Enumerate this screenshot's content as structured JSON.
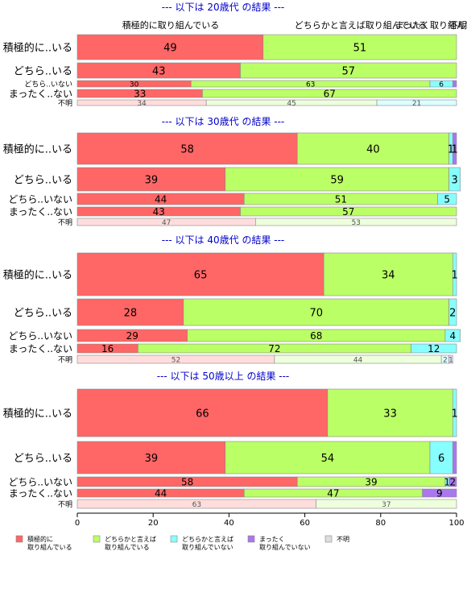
{
  "chart_data": {
    "type": "bar",
    "stacked": true,
    "orientation": "horizontal",
    "percent_scale": true,
    "xlim": [
      0,
      100
    ],
    "x_ticks": [
      "0",
      "20",
      "40",
      "60",
      "80",
      "100"
    ],
    "top_headers": [
      "積極的に取り組んでいる",
      "どちらかと言えば取り組んでいる",
      "まったく取り組んでいない",
      "不明"
    ],
    "legend": {
      "placement": "bottom",
      "items": [
        {
          "label": "積極的に\n取り組んでいる",
          "color": "#ff6666"
        },
        {
          "label": "どちらかと言えば\n取り組んでいる",
          "color": "#bbff66"
        },
        {
          "label": "どちらかと言えば\n取り組んでいない",
          "color": "#88ffff"
        },
        {
          "label": "まったく\n取り組んでいない",
          "color": "#aa77ee"
        },
        {
          "label": "不明",
          "color": "#dddddd"
        }
      ]
    },
    "panels": [
      {
        "title": "--- 以下は 20歳代 の結果 ---",
        "rows": [
          {
            "label": "積極的に..いる",
            "values": [
              49,
              51,
              0,
              0,
              0
            ],
            "labels": [
              "49",
              "51",
              "",
              "",
              ""
            ],
            "size": "tall",
            "faded": false
          },
          {
            "label": "どちら..いる",
            "values": [
              43,
              57,
              0,
              0,
              0
            ],
            "labels": [
              "43",
              "57",
              "",
              "",
              ""
            ],
            "size": "tall",
            "faded": false
          },
          {
            "label": "どちら..いない",
            "values": [
              30,
              63,
              6,
              1,
              0
            ],
            "labels": [
              "30",
              "63",
              "6",
              "",
              ""
            ],
            "size": "thin",
            "faded": false
          },
          {
            "label": "まったく..ない",
            "values": [
              33,
              67,
              0,
              0,
              0
            ],
            "labels": [
              "33",
              "67",
              "",
              "",
              ""
            ],
            "size": "small",
            "faded": false
          },
          {
            "label": "不明",
            "values": [
              34,
              45,
              21,
              0,
              0
            ],
            "labels": [
              "34",
              "45",
              "21",
              "",
              ""
            ],
            "size": "thin",
            "faded": true
          }
        ]
      },
      {
        "title": "--- 以下は 30歳代 の結果 ---",
        "rows": [
          {
            "label": "積極的に..いる",
            "values": [
              58,
              40,
              1,
              1,
              0
            ],
            "labels": [
              "58",
              "40",
              "1",
              "1",
              ""
            ],
            "size": "tall",
            "faded": false
          },
          {
            "label": "どちら..いる",
            "values": [
              39,
              59,
              3,
              0,
              0
            ],
            "labels": [
              "39",
              "59",
              "3",
              "",
              ""
            ],
            "size": "tall",
            "faded": false
          },
          {
            "label": "どちら..いない",
            "values": [
              44,
              51,
              5,
              0,
              0
            ],
            "labels": [
              "44",
              "51",
              "5",
              "",
              ""
            ],
            "size": "small",
            "faded": false
          },
          {
            "label": "まったく..ない",
            "values": [
              43,
              57,
              0,
              0,
              0
            ],
            "labels": [
              "43",
              "57",
              "",
              "",
              ""
            ],
            "size": "small",
            "faded": false
          },
          {
            "label": "不明",
            "values": [
              47,
              53,
              0,
              0,
              0
            ],
            "labels": [
              "47",
              "53",
              "",
              "",
              ""
            ],
            "size": "thin",
            "faded": true
          }
        ]
      },
      {
        "title": "--- 以下は 40歳代 の結果 ---",
        "rows": [
          {
            "label": "積極的に..いる",
            "values": [
              65,
              34,
              1,
              0,
              0
            ],
            "labels": [
              "65",
              "34",
              "1",
              "",
              ""
            ],
            "size": "tall",
            "faded": false
          },
          {
            "label": "どちら..いる",
            "values": [
              28,
              70,
              2,
              0,
              0
            ],
            "labels": [
              "28",
              "70",
              "2",
              "",
              ""
            ],
            "size": "tall",
            "faded": false
          },
          {
            "label": "どちら..いない",
            "values": [
              29,
              68,
              4,
              0,
              0
            ],
            "labels": [
              "29",
              "68",
              "4",
              "",
              ""
            ],
            "size": "small",
            "faded": false
          },
          {
            "label": "まったく..ない",
            "values": [
              16,
              72,
              12,
              0,
              0
            ],
            "labels": [
              "16",
              "72",
              "12",
              "",
              ""
            ],
            "size": "small",
            "faded": false
          },
          {
            "label": "不明",
            "values": [
              52,
              44,
              2,
              1,
              0
            ],
            "labels": [
              "52",
              "44",
              "2",
              "1",
              ""
            ],
            "size": "thin",
            "faded": true
          }
        ]
      },
      {
        "title": "--- 以下は 50歳以上 の結果 ---",
        "rows": [
          {
            "label": "積極的に..いる",
            "values": [
              66,
              33,
              1,
              0,
              0
            ],
            "labels": [
              "66",
              "33",
              "1",
              "",
              ""
            ],
            "size": "tall",
            "faded": false
          },
          {
            "label": "どちら..いる",
            "values": [
              39,
              54,
              6,
              1,
              0
            ],
            "labels": [
              "39",
              "54",
              "6",
              "",
              ""
            ],
            "size": "tall",
            "faded": false
          },
          {
            "label": "どちら..いない",
            "values": [
              58,
              39,
              1,
              2,
              0
            ],
            "labels": [
              "58",
              "39",
              "1",
              "2",
              ""
            ],
            "size": "small",
            "faded": false
          },
          {
            "label": "まったく..ない",
            "values": [
              44,
              47,
              0,
              9,
              0
            ],
            "labels": [
              "44",
              "47",
              "",
              "9",
              ""
            ],
            "size": "small",
            "faded": false
          },
          {
            "label": "不明",
            "values": [
              63,
              37,
              0,
              0,
              0
            ],
            "labels": [
              "63",
              "37",
              "",
              "",
              ""
            ],
            "size": "thin",
            "faded": true
          }
        ]
      }
    ]
  }
}
